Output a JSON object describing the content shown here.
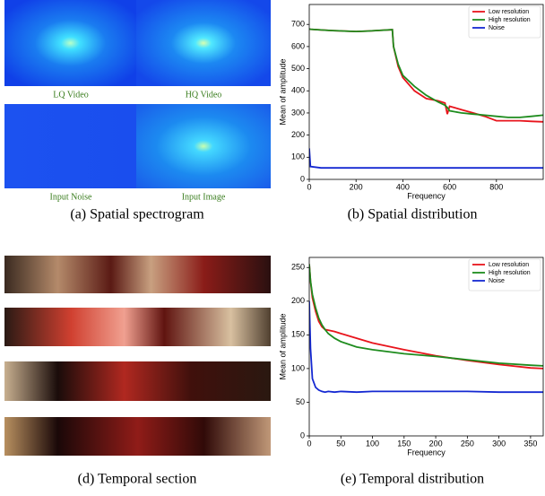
{
  "figure": {
    "image_labels": [
      "LQ Video",
      "HQ Video",
      "Input Noise",
      "Input Image"
    ],
    "captions": [
      "(a) Spatial spectrogram",
      "(b) Spatial distribution",
      "(d) Temporal section",
      "(e) Temporal distribution"
    ]
  },
  "chart_data": [
    {
      "type": "line",
      "xlabel": "Frequency",
      "ylabel": "Mean of amplitude",
      "x": [
        0,
        5,
        50,
        100,
        150,
        200,
        250,
        300,
        355,
        360,
        380,
        400,
        450,
        500,
        550,
        580,
        590,
        600,
        650,
        700,
        750,
        800,
        850,
        900,
        950,
        1000
      ],
      "xlim": [
        0,
        1000
      ],
      "xticks": [
        0,
        200,
        400,
        600,
        800
      ],
      "ylim": [
        0,
        790
      ],
      "yticks": [
        0,
        100,
        200,
        300,
        400,
        500,
        600,
        700
      ],
      "legend": "upper right",
      "series": [
        {
          "name": "Low resolution",
          "color": "#e8141c",
          "values": [
            680,
            678,
            675,
            672,
            670,
            668,
            670,
            673,
            676,
            600,
            510,
            460,
            400,
            365,
            355,
            345,
            295,
            330,
            315,
            300,
            285,
            265,
            265,
            265,
            262,
            260
          ]
        },
        {
          "name": "High resolution",
          "color": "#1e8c1e",
          "values": [
            680,
            678,
            675,
            672,
            670,
            668,
            670,
            673,
            676,
            600,
            520,
            470,
            420,
            380,
            350,
            335,
            325,
            310,
            300,
            295,
            290,
            285,
            280,
            280,
            285,
            290
          ]
        },
        {
          "name": "Noise",
          "color": "#1428d2",
          "values": [
            140,
            58,
            52,
            52,
            52,
            52,
            52,
            52,
            52,
            52,
            52,
            52,
            52,
            52,
            52,
            52,
            52,
            52,
            52,
            52,
            52,
            52,
            52,
            52,
            52,
            52
          ]
        }
      ]
    },
    {
      "type": "line",
      "xlabel": "Frequency",
      "ylabel": "Mean of amplitude",
      "x": [
        0,
        2,
        5,
        10,
        15,
        20,
        25,
        30,
        40,
        50,
        75,
        100,
        150,
        200,
        250,
        300,
        350,
        370
      ],
      "xlim": [
        0,
        370
      ],
      "xticks": [
        0,
        50,
        100,
        150,
        200,
        250,
        300,
        350
      ],
      "ylim": [
        0,
        265
      ],
      "yticks": [
        0,
        50,
        100,
        150,
        200,
        250
      ],
      "legend": "upper right",
      "series": [
        {
          "name": "Low resolution",
          "color": "#e8141c",
          "values": [
            255,
            230,
            205,
            185,
            170,
            162,
            158,
            157,
            155,
            152,
            145,
            138,
            128,
            119,
            112,
            106,
            101,
            100
          ]
        },
        {
          "name": "High resolution",
          "color": "#1e8c1e",
          "values": [
            255,
            230,
            210,
            190,
            175,
            165,
            158,
            152,
            145,
            140,
            132,
            128,
            122,
            118,
            113,
            108,
            105,
            104
          ]
        },
        {
          "name": "Noise",
          "color": "#1428d2",
          "values": [
            200,
            130,
            85,
            72,
            68,
            66,
            65,
            66,
            65,
            66,
            65,
            66,
            66,
            66,
            66,
            65,
            65,
            65
          ]
        }
      ]
    }
  ]
}
